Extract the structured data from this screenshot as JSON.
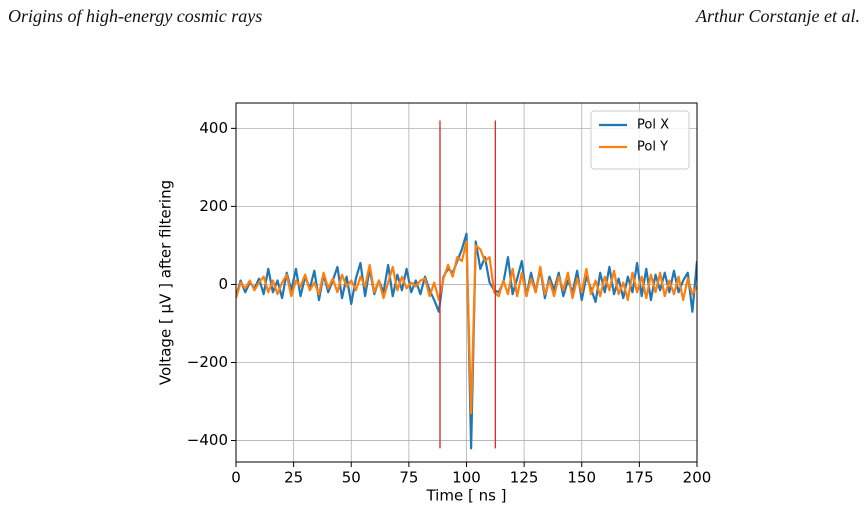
{
  "header": {
    "left": "Origins of high-energy cosmic rays",
    "right": "Arthur Corstanje et al."
  },
  "chart_data": {
    "type": "line",
    "xlabel": "Time [ ns ]",
    "ylabel": "Voltage [ µV ] after filtering",
    "xlim": [
      0,
      200
    ],
    "ylim": [
      -455,
      465
    ],
    "xticks": [
      0,
      25,
      50,
      75,
      100,
      125,
      150,
      175,
      200
    ],
    "yticks": [
      {
        "value": -400,
        "label": "−400"
      },
      {
        "value": -200,
        "label": "−200"
      },
      0,
      200,
      400
    ],
    "grid": true,
    "legend": "upper right",
    "x": [
      0,
      2,
      4,
      6,
      8,
      10,
      12,
      14,
      16,
      18,
      20,
      22,
      24,
      26,
      28,
      30,
      32,
      34,
      36,
      38,
      40,
      42,
      44,
      46,
      48,
      50,
      52,
      54,
      56,
      58,
      60,
      62,
      64,
      66,
      68,
      70,
      72,
      74,
      76,
      78,
      80,
      82,
      84,
      86,
      88,
      90,
      92,
      94,
      96,
      98,
      100,
      102,
      104,
      106,
      108,
      110,
      112,
      114,
      116,
      118,
      120,
      122,
      124,
      126,
      128,
      130,
      132,
      134,
      136,
      138,
      140,
      142,
      144,
      146,
      148,
      150,
      152,
      154,
      156,
      158,
      160,
      162,
      164,
      166,
      168,
      170,
      172,
      174,
      176,
      178,
      180,
      182,
      184,
      186,
      188,
      190,
      192,
      194,
      196,
      198,
      200
    ],
    "series": [
      {
        "name": "Pol X",
        "color": "#1f77b4",
        "values": [
          -30,
          10,
          -20,
          5,
          -10,
          15,
          -25,
          40,
          -20,
          10,
          -35,
          30,
          -15,
          40,
          -30,
          20,
          -10,
          35,
          -40,
          25,
          -20,
          10,
          45,
          -35,
          20,
          -50,
          15,
          55,
          -30,
          40,
          -25,
          10,
          -20,
          50,
          -30,
          25,
          -15,
          40,
          -20,
          10,
          -25,
          20,
          -15,
          -40,
          -70,
          20,
          40,
          30,
          60,
          90,
          130,
          -420,
          110,
          40,
          70,
          5,
          -15,
          -20,
          5,
          70,
          -25,
          15,
          60,
          -30,
          30,
          -20,
          40,
          -35,
          20,
          -15,
          30,
          -30,
          10,
          -20,
          35,
          -40,
          20,
          -10,
          -45,
          30,
          -20,
          45,
          -25,
          15,
          -35,
          20,
          -20,
          55,
          -30,
          40,
          -40,
          25,
          -15,
          30,
          -20,
          35,
          -20,
          10,
          30,
          -70,
          60
        ]
      },
      {
        "name": "Pol Y",
        "color": "#ff7f0e",
        "values": [
          -35,
          5,
          -10,
          10,
          -15,
          5,
          20,
          -20,
          10,
          -25,
          5,
          25,
          -30,
          10,
          -5,
          25,
          -15,
          5,
          -25,
          30,
          -10,
          15,
          -20,
          25,
          -5,
          10,
          -15,
          20,
          -5,
          50,
          -20,
          10,
          -35,
          5,
          45,
          -15,
          20,
          -10,
          5,
          -5,
          10,
          15,
          -30,
          5,
          -40,
          15,
          50,
          20,
          70,
          60,
          110,
          -330,
          100,
          90,
          60,
          70,
          -20,
          -30,
          10,
          -25,
          40,
          -30,
          30,
          -30,
          15,
          -20,
          45,
          -25,
          10,
          -30,
          20,
          -15,
          30,
          -35,
          15,
          -20,
          40,
          -25,
          10,
          -30,
          20,
          -15,
          35,
          -25,
          5,
          -40,
          30,
          -20,
          20,
          -35,
          25,
          -20,
          30,
          -30,
          10,
          -25,
          20,
          -40,
          15,
          -25,
          -5
        ]
      }
    ],
    "vlines": [
      {
        "x": 88.5,
        "ymin": -420,
        "ymax": 420,
        "color": "#d62728"
      },
      {
        "x": 112.5,
        "ymin": -420,
        "ymax": 420,
        "color": "#d62728"
      }
    ]
  }
}
